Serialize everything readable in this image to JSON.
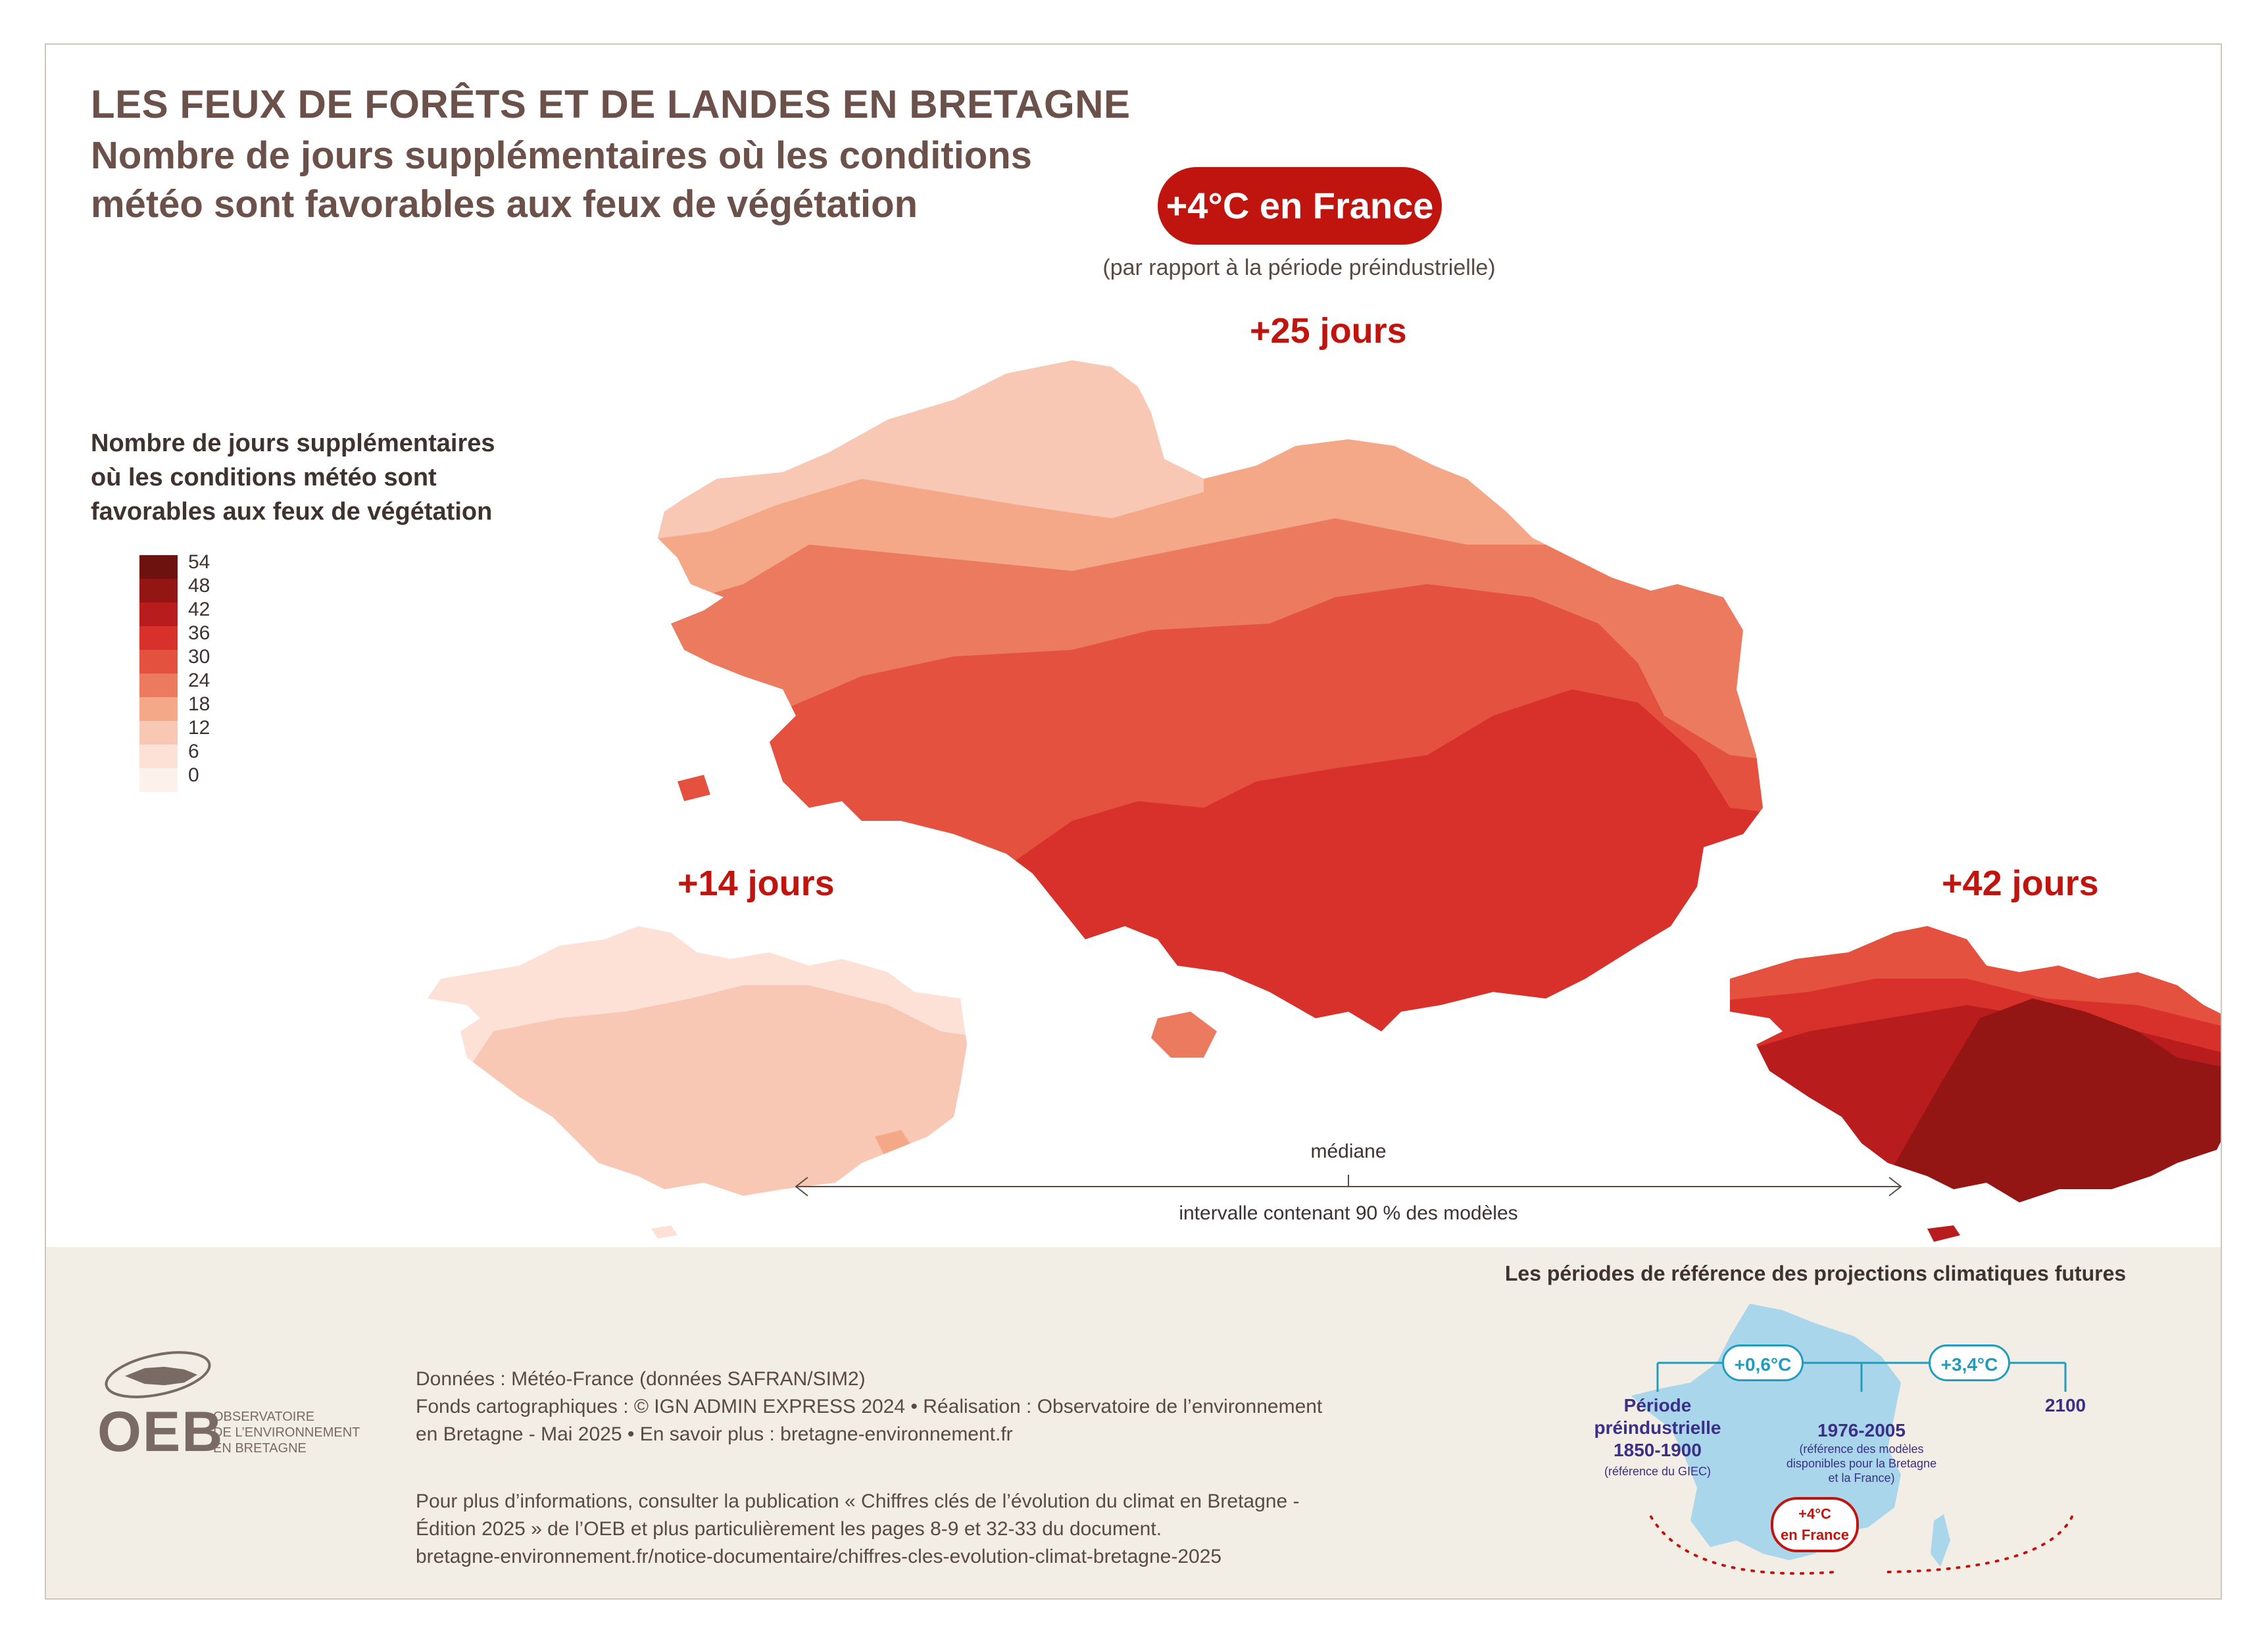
{
  "title": "LES FEUX DE FORÊTS ET DE LANDES EN BRETAGNE",
  "subtitle_line1": "Nombre de jours supplémentaires où les conditions",
  "subtitle_line2": "météo sont favorables aux feux de végétation",
  "scenario_badge": "+4°C en France",
  "scenario_note": "(par rapport à la période préindustrielle)",
  "legend": {
    "title_line1": "Nombre de jours supplémentaires",
    "title_line2": "où les conditions météo sont",
    "title_line3": "favorables aux feux de végétation",
    "ticks": [
      "54",
      "48",
      "42",
      "36",
      "30",
      "24",
      "18",
      "12",
      "6",
      "0"
    ],
    "colors": [
      "#6e1210",
      "#941614",
      "#b91c1c",
      "#d8312c",
      "#e4513f",
      "#ec7a5e",
      "#f5a888",
      "#f9c8b5",
      "#fde0d6",
      "#fdf1ec"
    ]
  },
  "maps": {
    "median": {
      "label": "+25 jours",
      "value_days": 25
    },
    "low": {
      "label": "+14 jours",
      "value_days": 14
    },
    "high": {
      "label": "+42 jours",
      "value_days": 42
    }
  },
  "interval": {
    "median_label": "médiane",
    "interval_label": "intervalle contenant 90 % des modèles"
  },
  "footer": {
    "source_line1": "Données : Météo-France (données SAFRAN/SIM2)",
    "source_line2": "Fonds cartographiques : © IGN ADMIN EXPRESS 2024 • Réalisation : Observatoire de l’environnement",
    "source_line3": "en Bretagne - Mai 2025 • En savoir plus : bretagne-environnement.fr",
    "info_line1": "Pour plus d’informations, consulter la publication « Chiffres clés de l’évolution du climat en Bretagne -",
    "info_line2": "Édition 2025 » de l’OEB et plus particulièrement les pages 8-9 et 32-33 du document.",
    "info_line3": "bretagne-environnement.fr/notice-documentaire/chiffres-cles-evolution-climat-bretagne-2025",
    "logo_word": "OEB",
    "logo_sub1": "OBSERVATOIRE",
    "logo_sub2": "DE L’ENVIRONNEMENT",
    "logo_sub3": "EN BRETAGNE"
  },
  "reference_periods": {
    "title": "Les périodes de référence des projections climatiques futures",
    "pill_left": "+0,6°C",
    "pill_right": "+3,4°C",
    "period1_line1": "Période",
    "period1_line2": "préindustrielle",
    "period1_line3": "1850-1900",
    "period1_note": "(référence du GIEC)",
    "period2": "1976-2005",
    "period2_note1": "(référence des modèles",
    "period2_note2": "disponibles pour la Bretagne",
    "period2_note3": "et la France)",
    "period3": "2100",
    "badge_line1": "+4°C",
    "badge_line2": "en France"
  }
}
